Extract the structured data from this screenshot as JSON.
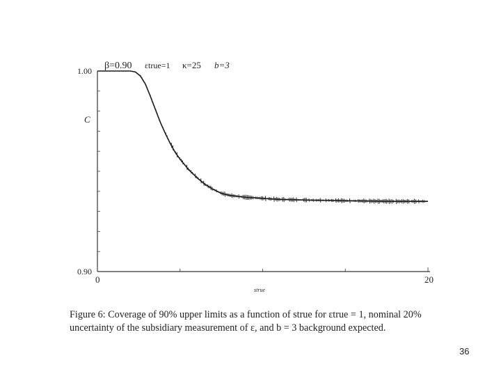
{
  "chart_data": {
    "type": "line",
    "title_params": [
      {
        "label": "β=0.90"
      },
      {
        "label": "εtrue=1"
      },
      {
        "label": "κ=25"
      },
      {
        "label": "b=3"
      }
    ],
    "xlabel": "strue",
    "ylabel": "C",
    "xlim": [
      0,
      20
    ],
    "ylim": [
      0.9,
      1.0
    ],
    "x_tick_labels": [
      "0",
      "20"
    ],
    "y_tick_labels": [
      "1.00",
      "0.90"
    ],
    "x_minor_ticks": [
      5,
      10,
      15
    ],
    "series": [
      {
        "x": [
          0,
          0.5,
          1.0,
          1.5,
          2.0,
          2.3,
          2.6,
          2.9,
          3.2,
          3.5,
          3.8,
          4.1,
          4.4,
          4.7,
          5.0,
          5.5,
          6.0,
          6.5,
          7.0,
          7.5,
          8.0,
          8.5,
          9.0,
          9.5,
          10.0,
          10.5,
          11.0,
          12.0,
          13.0,
          14.0,
          15.0,
          16.0,
          17.0,
          18.0,
          19.0,
          20.0
        ],
        "y": [
          1.0,
          1.0,
          1.0,
          1.0,
          1.0,
          0.9995,
          0.9975,
          0.9935,
          0.9875,
          0.981,
          0.9745,
          0.969,
          0.964,
          0.9595,
          0.956,
          0.951,
          0.947,
          0.9435,
          0.941,
          0.939,
          0.938,
          0.9375,
          0.937,
          0.9368,
          0.9365,
          0.9362,
          0.936,
          0.9358,
          0.9356,
          0.9355,
          0.9353,
          0.9352,
          0.9351,
          0.935,
          0.935,
          0.935
        ]
      }
    ]
  },
  "caption": "Figure 6: Coverage of 90% upper limits as a function of strue for εtrue = 1, nominal 20% uncertainty of the subsidiary measurement of ε, and b = 3 background expected.",
  "slide_number": "36"
}
